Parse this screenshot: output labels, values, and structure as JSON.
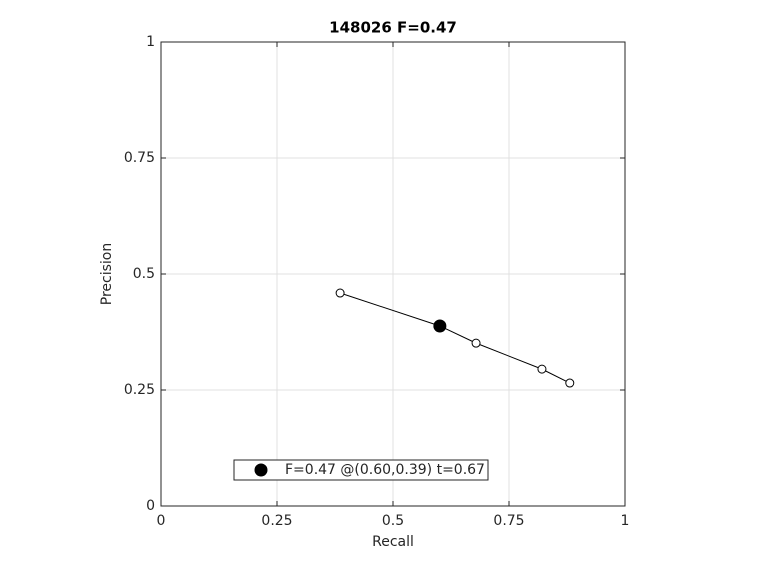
{
  "chart_data": {
    "type": "line",
    "title": "148026 F=0.47",
    "xlabel": "Recall",
    "ylabel": "Precision",
    "xlim": [
      0,
      1
    ],
    "ylim": [
      0,
      1
    ],
    "xticks": [
      0,
      0.25,
      0.5,
      0.75,
      1
    ],
    "yticks": [
      0,
      0.25,
      0.5,
      0.75,
      1
    ],
    "grid": true,
    "legend": "lower left",
    "series": [
      {
        "color": "#000000",
        "marker": "open-circle",
        "linestyle": "solid",
        "x": [
          0.386,
          0.601,
          0.679,
          0.821,
          0.881
        ],
        "values": [
          0.459,
          0.388,
          0.351,
          0.295,
          0.265
        ]
      },
      {
        "name": "F=0.47 @(0.60,0.39) t=0.67",
        "color": "#000000",
        "marker": "filled-circle",
        "linestyle": "none",
        "x": [
          0.601
        ],
        "values": [
          0.388
        ]
      }
    ]
  }
}
